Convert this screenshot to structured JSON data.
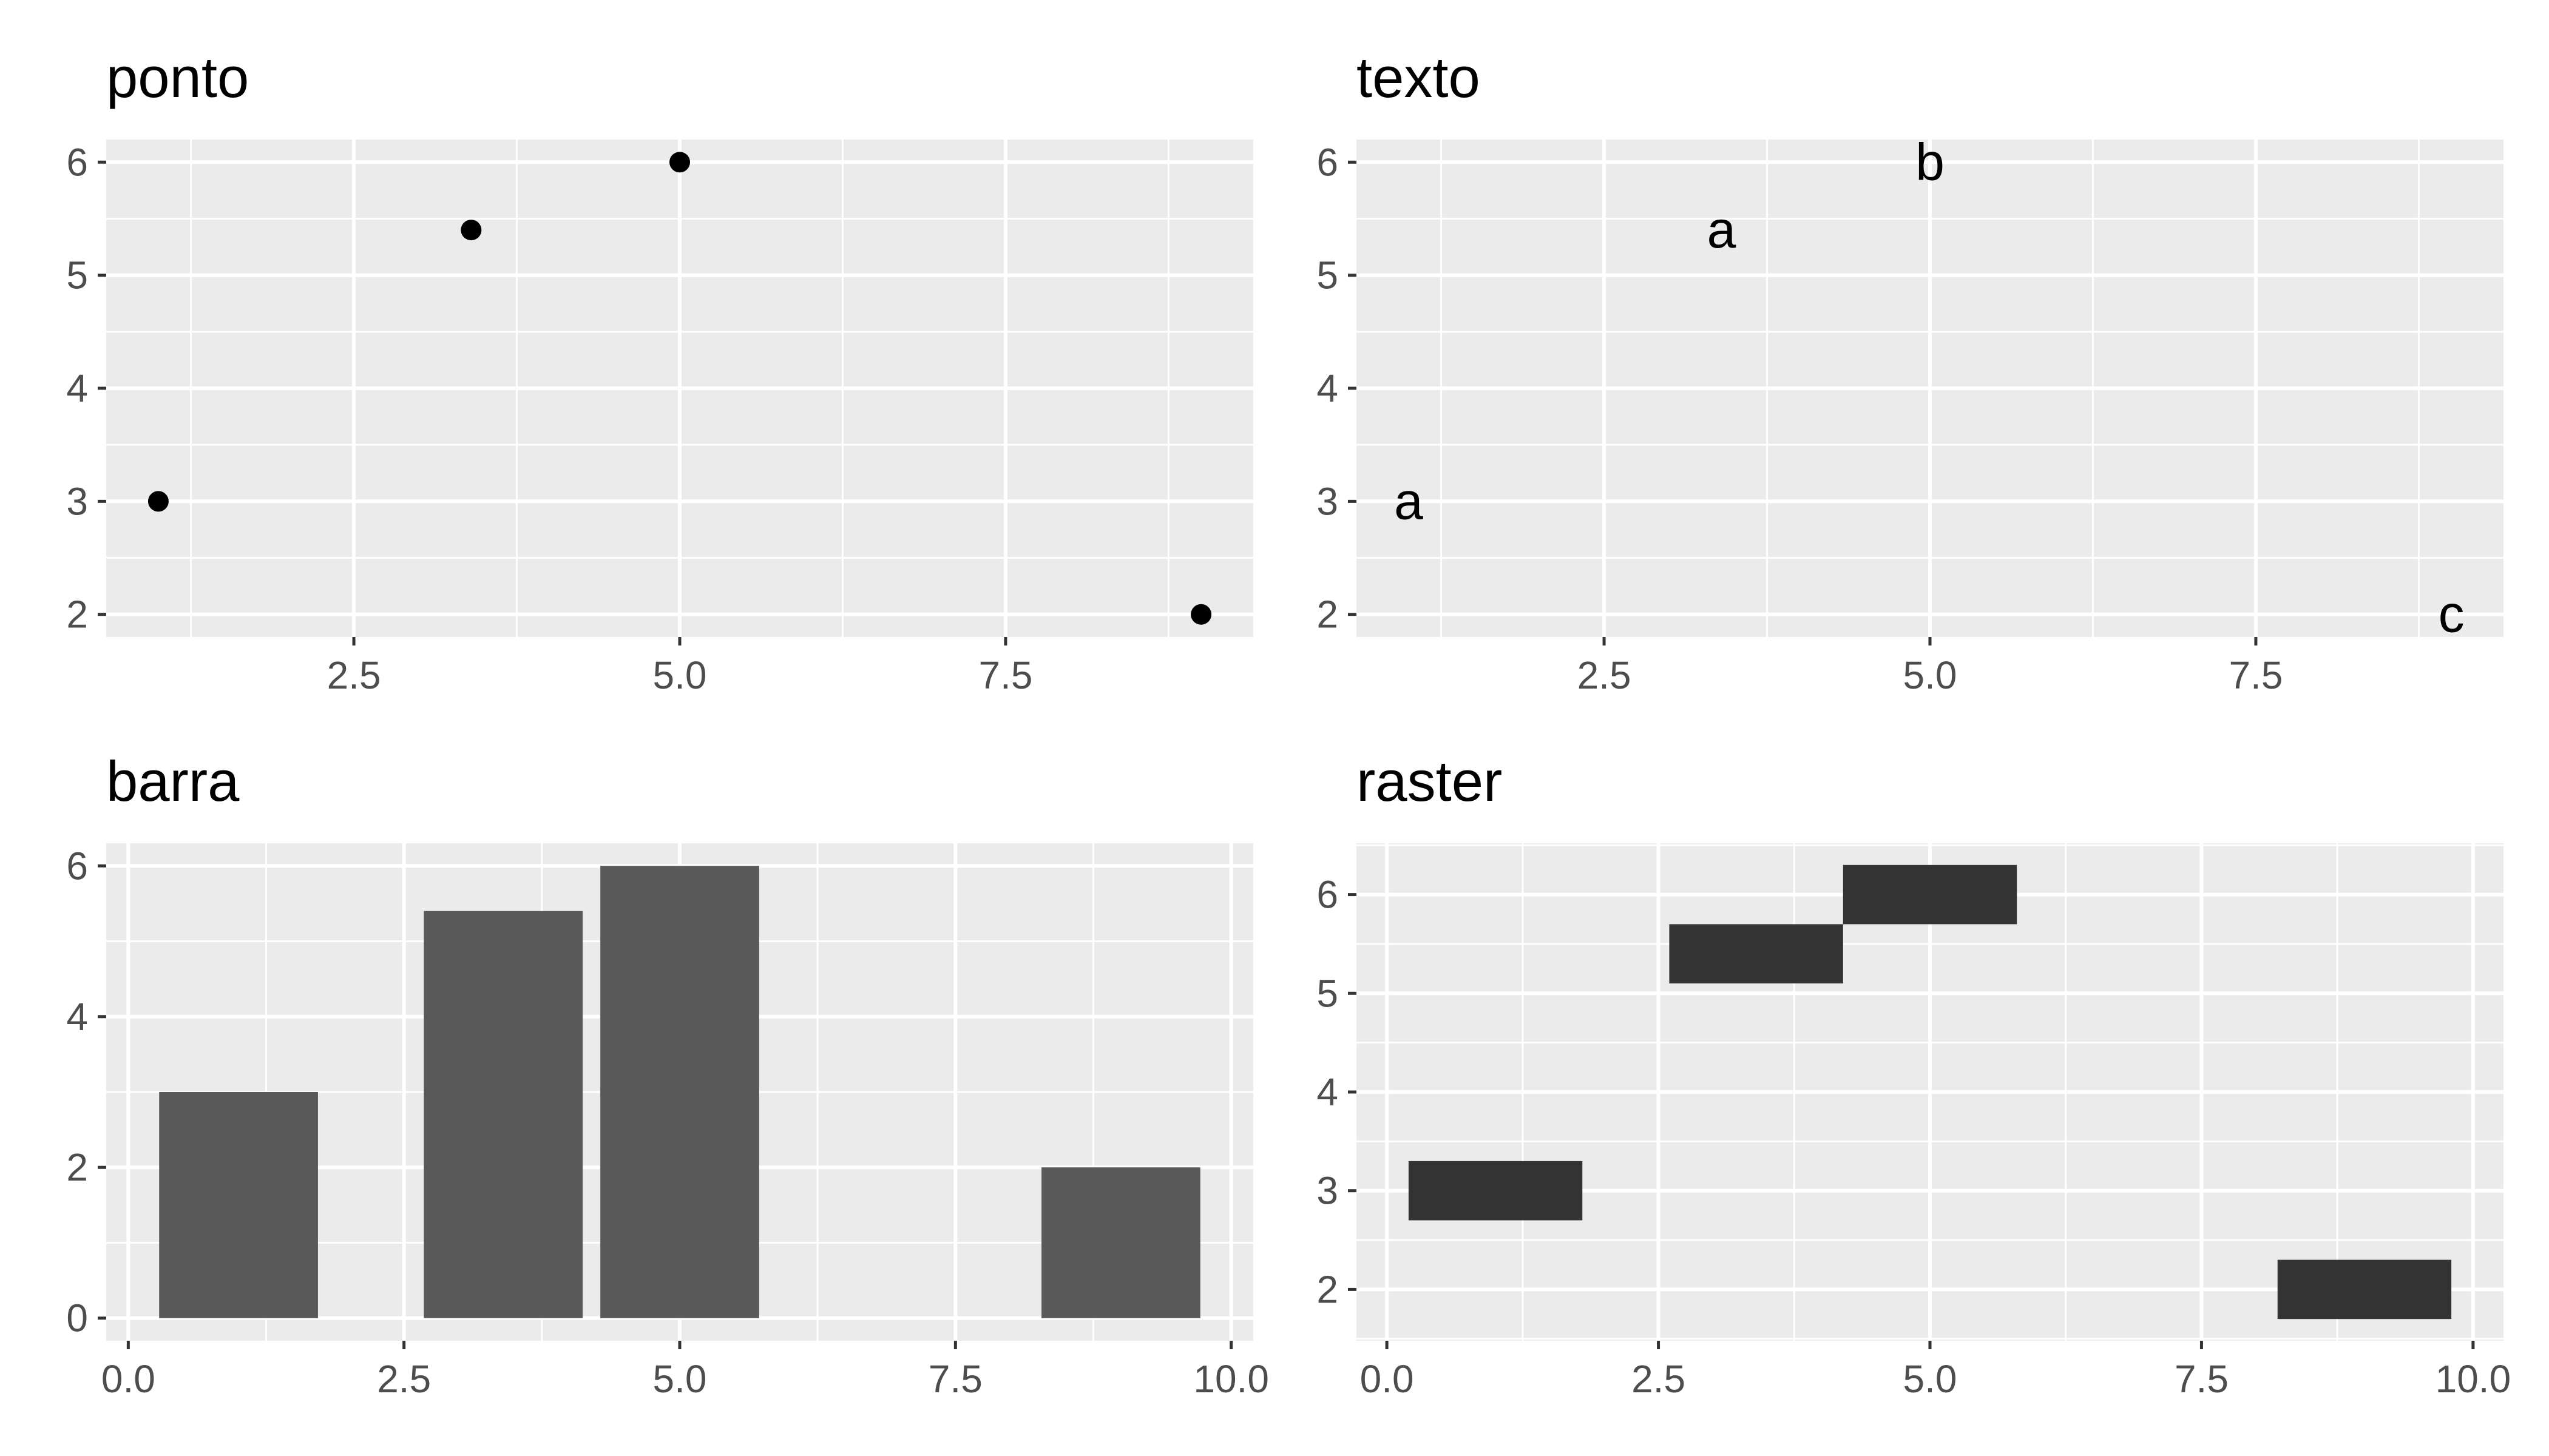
{
  "colors": {
    "panel_background": "#ebebeb",
    "grid_line": "#ffffff",
    "axis_text": "#4d4d4d",
    "tick_mark": "#333333",
    "point": "#000000",
    "bar_fill": "#595959",
    "tile_fill": "#333333"
  },
  "chart_data": [
    {
      "type": "scatter",
      "title": "ponto",
      "xlabel": "",
      "ylabel": "",
      "x": [
        1,
        3.4,
        5,
        9
      ],
      "y": [
        3,
        5.4,
        6,
        2
      ],
      "xlim": [
        0.6,
        9.4
      ],
      "ylim": [
        1.8,
        6.2
      ],
      "x_ticks": [
        2.5,
        5.0,
        7.5
      ],
      "x_tick_labels": [
        "2.5",
        "5.0",
        "7.5"
      ],
      "y_ticks": [
        2,
        3,
        4,
        5,
        6
      ],
      "y_tick_labels": [
        "2",
        "3",
        "4",
        "5",
        "6"
      ],
      "grid": true,
      "legend": "none"
    },
    {
      "type": "scatter",
      "title": "texto",
      "xlabel": "",
      "ylabel": "",
      "x": [
        1,
        3.4,
        5,
        9
      ],
      "y": [
        3,
        5.4,
        6,
        2
      ],
      "labels": [
        "a",
        "a",
        "b",
        "c"
      ],
      "xlim": [
        0.6,
        9.4
      ],
      "ylim": [
        1.8,
        6.2
      ],
      "x_ticks": [
        2.5,
        5.0,
        7.5
      ],
      "x_tick_labels": [
        "2.5",
        "5.0",
        "7.5"
      ],
      "y_ticks": [
        2,
        3,
        4,
        5,
        6
      ],
      "y_tick_labels": [
        "2",
        "3",
        "4",
        "5",
        "6"
      ],
      "grid": true,
      "legend": "none"
    },
    {
      "type": "bar",
      "title": "barra",
      "xlabel": "",
      "ylabel": "",
      "x": [
        1,
        3.4,
        5,
        9
      ],
      "values": [
        3,
        5.4,
        6,
        2
      ],
      "bar_width": 1.44,
      "xlim": [
        -0.2,
        10.2
      ],
      "ylim": [
        -0.3,
        6.3
      ],
      "x_ticks": [
        0.0,
        2.5,
        5.0,
        7.5,
        10.0
      ],
      "x_tick_labels": [
        "0.0",
        "2.5",
        "5.0",
        "7.5",
        "10.0"
      ],
      "y_ticks": [
        0,
        2,
        4,
        6
      ],
      "y_tick_labels": [
        "0",
        "2",
        "4",
        "6"
      ],
      "grid": true,
      "legend": "none"
    },
    {
      "type": "heatmap",
      "title": "raster",
      "xlabel": "",
      "ylabel": "",
      "x": [
        1,
        3.4,
        5,
        9
      ],
      "y": [
        3,
        5.4,
        6,
        2
      ],
      "tile_width": 1.6,
      "tile_height": 0.6,
      "xlim": [
        -0.28,
        10.28
      ],
      "ylim": [
        1.48,
        6.52
      ],
      "x_ticks": [
        0.0,
        2.5,
        5.0,
        7.5,
        10.0
      ],
      "x_tick_labels": [
        "0.0",
        "2.5",
        "5.0",
        "7.5",
        "10.0"
      ],
      "y_ticks": [
        2,
        3,
        4,
        5,
        6
      ],
      "y_tick_labels": [
        "2",
        "3",
        "4",
        "5",
        "6"
      ],
      "grid": true,
      "legend": "none"
    }
  ]
}
